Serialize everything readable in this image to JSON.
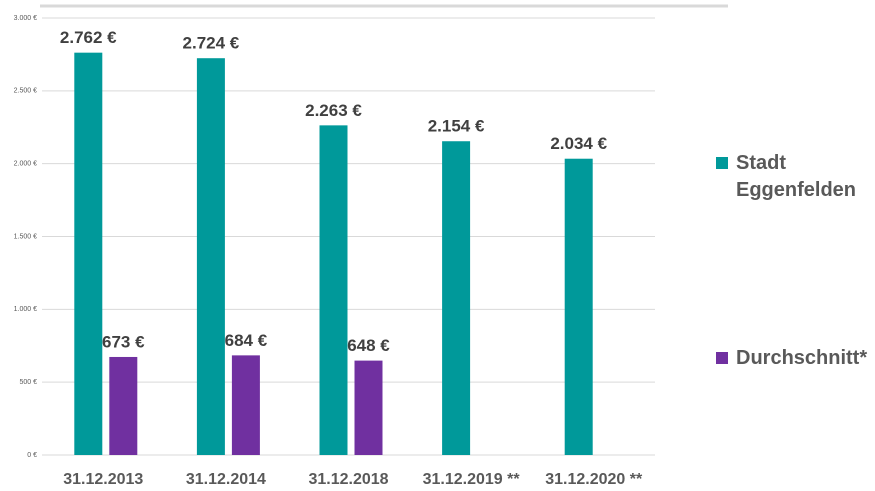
{
  "chart_data": {
    "type": "bar",
    "categories": [
      "31.12.2013",
      "31.12.2014",
      "31.12.2018",
      "31.12.2019 **",
      "31.12.2020 **"
    ],
    "series": [
      {
        "name": "Stadt Eggenfelden",
        "color": "#00999a",
        "values": [
          2762,
          2724,
          2263,
          2154,
          2034
        ],
        "value_labels": [
          "2.762 €",
          "2.724 €",
          "2.263 €",
          "2.154 €",
          "2.034 €"
        ]
      },
      {
        "name": "Durchschnitt*",
        "color": "#7030a0",
        "values": [
          673,
          684,
          648,
          null,
          null
        ],
        "value_labels": [
          "673 €",
          "684 €",
          "648 €",
          null,
          null
        ]
      }
    ],
    "ylim": [
      0,
      3000
    ],
    "yticks": [
      {
        "value": 0,
        "label": "0 €"
      },
      {
        "value": 500,
        "label": "500 €"
      },
      {
        "value": 1000,
        "label": "1.000 €"
      },
      {
        "value": 1500,
        "label": "1.500 €"
      },
      {
        "value": 2000,
        "label": "2.000 €"
      },
      {
        "value": 2500,
        "label": "2.500 €"
      },
      {
        "value": 3000,
        "label": "3.000 €"
      }
    ],
    "grid": true,
    "legend": "right"
  }
}
